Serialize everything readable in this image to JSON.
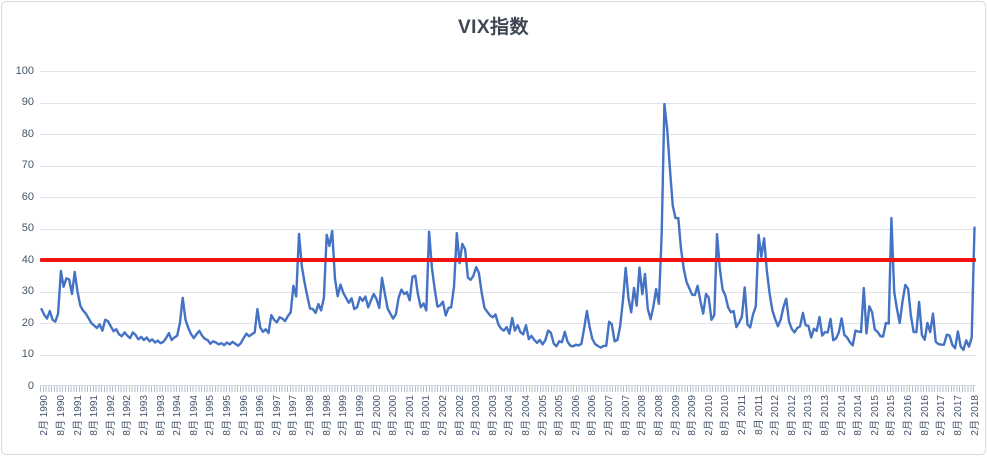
{
  "title": "VIX指数",
  "colors": {
    "series": "#4472C4",
    "reference_line": "#F01414",
    "axis_labels": "#44546A",
    "gridlines": "#DDE2EC",
    "title": "#3E4553",
    "frame_border": "#D9D9D9"
  },
  "chart_data": {
    "type": "line",
    "title": "VIX指数",
    "xlabel": "",
    "ylabel": "",
    "ylim": [
      0,
      100
    ],
    "y_ticks": [
      0,
      10,
      20,
      30,
      40,
      50,
      60,
      70,
      80,
      90,
      100
    ],
    "grid": true,
    "legend_position": "none",
    "x_frequency": "monthly",
    "x_tick_label_interval": 6,
    "x_tick_labels": [
      "2月 1990",
      "8月 1990",
      "2月 1991",
      "8月 1991",
      "2月 1992",
      "8月 1992",
      "2月 1993",
      "8月 1993",
      "2月 1994",
      "8月 1994",
      "2月 1995",
      "8月 1995",
      "2月 1996",
      "8月 1996",
      "2月 1997",
      "8月 1997",
      "2月 1998",
      "8月 1998",
      "2月 1999",
      "8月 1999",
      "2月 2000",
      "8月 2000",
      "2月 2001",
      "8月 2001",
      "2月 2002",
      "8月 2002",
      "2月 2003",
      "8月 2003",
      "2月 2004",
      "8月 2004",
      "2月 2005",
      "8月 2005",
      "2月 2006",
      "8月 2006",
      "2月 2007",
      "8月 2007",
      "2月 2008",
      "8月 2008",
      "2月 2009",
      "8月 2009",
      "2月 2010",
      "8月 2010",
      "2月 2011",
      "8月 2011",
      "2月 2012",
      "8月 2012",
      "2月 2013",
      "8月 2013",
      "2月 2014",
      "8月 2014",
      "2月 2015",
      "8月 2015",
      "2月 2016",
      "8月 2016",
      "2月 2017",
      "8月 2017",
      "2月 2018"
    ],
    "reference_line": {
      "value": 40,
      "color": "#F01414"
    },
    "series": [
      {
        "name": "VIX",
        "color": "#4472C4",
        "start": "1990-01",
        "end": "2018-02",
        "values": [
          24.4,
          22.6,
          21.4,
          23.8,
          21.0,
          20.4,
          23.0,
          36.5,
          31.5,
          34.2,
          33.8,
          29.2,
          36.2,
          30.0,
          25.5,
          24.0,
          23.0,
          21.5,
          20.0,
          19.2,
          18.4,
          19.6,
          17.6,
          21.0,
          20.6,
          19.0,
          17.4,
          18.0,
          16.4,
          15.8,
          17.0,
          16.0,
          15.2,
          17.0,
          16.2,
          14.8,
          15.6,
          14.6,
          15.4,
          14.2,
          14.8,
          13.8,
          14.4,
          13.6,
          14.0,
          15.2,
          16.8,
          14.6,
          15.4,
          16.0,
          20.0,
          28.0,
          21.0,
          18.5,
          16.5,
          15.2,
          16.4,
          17.5,
          16.0,
          15.0,
          14.6,
          13.4,
          14.2,
          13.8,
          13.2,
          13.6,
          13.0,
          13.8,
          13.2,
          14.0,
          13.4,
          12.8,
          13.6,
          15.2,
          16.6,
          15.8,
          16.4,
          17.0,
          24.4,
          18.6,
          17.2,
          18.0,
          16.8,
          22.5,
          21.0,
          20.2,
          21.8,
          21.4,
          20.6,
          22.2,
          23.4,
          31.8,
          28.4,
          48.3,
          38.2,
          33.0,
          28.5,
          24.6,
          24.4,
          23.2,
          26.0,
          24.0,
          28.0,
          48.0,
          44.5,
          49.2,
          34.0,
          28.5,
          32.2,
          29.6,
          28.0,
          26.4,
          27.8,
          24.4,
          25.0,
          28.2,
          27.0,
          28.4,
          25.0,
          27.2,
          29.2,
          27.6,
          24.8,
          34.3,
          29.4,
          24.6,
          23.0,
          21.4,
          22.8,
          28.0,
          30.6,
          29.2,
          29.8,
          27.2,
          34.7,
          35.0,
          29.0,
          25.0,
          26.2,
          24.0,
          49.0,
          37.5,
          31.0,
          25.2,
          25.6,
          26.8,
          22.4,
          24.8,
          25.0,
          31.5,
          48.5,
          39.0,
          45.1,
          43.4,
          34.4,
          33.7,
          35.0,
          37.7,
          35.9,
          29.6,
          24.8,
          23.6,
          22.4,
          21.8,
          22.7,
          19.6,
          18.2,
          17.6,
          18.7,
          16.6,
          21.6,
          17.6,
          19.3,
          17.0,
          16.4,
          19.3,
          14.9,
          15.9,
          14.6,
          13.7,
          14.6,
          13.2,
          14.6,
          17.6,
          16.9,
          13.5,
          12.6,
          14.2,
          13.9,
          17.2,
          14.1,
          12.8,
          12.6,
          13.1,
          12.9,
          13.4,
          18.2,
          23.8,
          18.6,
          14.9,
          13.3,
          12.7,
          12.2,
          12.7,
          12.8,
          20.4,
          19.6,
          14.2,
          14.6,
          18.9,
          27.0,
          37.5,
          28.0,
          23.4,
          31.1,
          25.5,
          37.6,
          29.1,
          35.6,
          24.4,
          21.2,
          25.1,
          30.8,
          26.1,
          48.4,
          89.5,
          81.5,
          68.6,
          57.4,
          53.3,
          53.3,
          43.6,
          37.1,
          33.0,
          31.0,
          29.0,
          28.9,
          31.8,
          27.0,
          23.0,
          29.2,
          28.1,
          21.0,
          22.5,
          48.2,
          37.4,
          30.6,
          28.8,
          25.0,
          23.4,
          23.8,
          18.7,
          20.2,
          22.0,
          31.3,
          19.5,
          18.6,
          22.7,
          25.3,
          48.0,
          41.0,
          46.9,
          36.4,
          29.4,
          24.0,
          21.2,
          19.0,
          21.1,
          25.1,
          27.7,
          20.5,
          18.1,
          17.0,
          18.4,
          19.0,
          23.2,
          19.3,
          19.1,
          15.4,
          18.2,
          17.5,
          21.9,
          16.0,
          17.1,
          17.0,
          21.3,
          14.5,
          15.1,
          17.0,
          21.5,
          16.2,
          15.4,
          13.9,
          12.9,
          17.6,
          17.3,
          17.1,
          31.1,
          16.7,
          25.3,
          23.4,
          17.9,
          17.2,
          15.8,
          15.7,
          20.0,
          19.8,
          53.3,
          29.9,
          24.4,
          20.0,
          26.8,
          32.1,
          30.9,
          22.6,
          17.1,
          17.1,
          26.7,
          16.2,
          14.7,
          20.0,
          17.1,
          23.0,
          14.1,
          13.3,
          13.1,
          13.1,
          16.3,
          16.0,
          13.0,
          12.0,
          17.3,
          12.5,
          11.5,
          14.5,
          12.5,
          15.4,
          50.3
        ]
      }
    ]
  }
}
